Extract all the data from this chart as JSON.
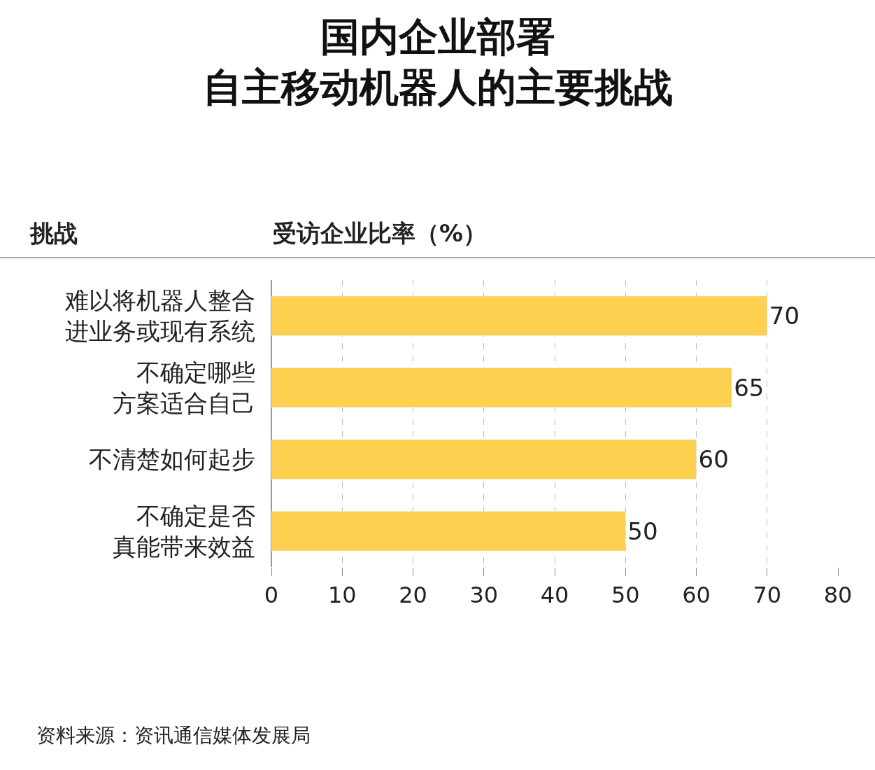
{
  "chart_data": {
    "type": "bar",
    "orientation": "horizontal",
    "title": "国内企业部署自主移动机器人的主要挑战",
    "ylabel": "挑战",
    "xlabel": "受访企业比率（%）",
    "categories": [
      "难以将机器人整合进业务或现有系统",
      "不确定哪些方案适合自己",
      "不清楚如何起步",
      "不确定是否真能带来效益"
    ],
    "values": [
      70,
      65,
      60,
      50
    ],
    "color": "#fdd04f",
    "data_labels": true,
    "xlim": [
      0,
      80
    ],
    "xticks": [
      0,
      10,
      20,
      30,
      40,
      50,
      60,
      70,
      80
    ],
    "grid": "x",
    "legend": false,
    "annotations": [
      "资料来源：资讯通信媒体发展局"
    ]
  }
}
